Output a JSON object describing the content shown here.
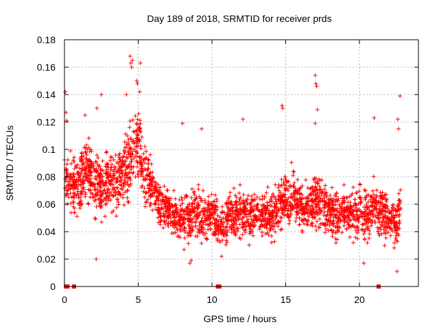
{
  "chart_data": {
    "type": "scatter",
    "title": "Day 189 of 2018, SRMTID for receiver prds",
    "xlabel": "GPS time / hours",
    "ylabel": "SRMTID / TECUs",
    "xlim": [
      0,
      24
    ],
    "ylim": [
      0,
      0.18
    ],
    "xticks": [
      0,
      5,
      10,
      15,
      20
    ],
    "xtick_labels": [
      "0",
      "5",
      "10",
      "15",
      "20"
    ],
    "yticks": [
      0,
      0.02,
      0.04,
      0.06,
      0.08,
      0.1,
      0.12,
      0.14,
      0.16,
      0.18
    ],
    "ytick_labels": [
      "0",
      "0.02",
      "0.04",
      "0.06",
      "0.08",
      "0.1",
      "0.12",
      "0.14",
      "0.16",
      "0.18"
    ],
    "grid": true,
    "marker": "+",
    "marker_color": "#ff0000",
    "series": [
      {
        "name": "SRMTID",
        "trend": {
          "x": [
            0,
            0.5,
            1.0,
            1.5,
            2.0,
            2.5,
            3.0,
            3.5,
            4.0,
            4.5,
            5.0,
            5.5,
            6.0,
            6.5,
            7.0,
            7.5,
            8.0,
            8.5,
            9.0,
            9.5,
            10.0,
            10.5,
            11.0,
            11.5,
            12.0,
            12.5,
            13.0,
            13.5,
            14.0,
            14.5,
            15.0,
            15.5,
            16.0,
            16.5,
            17.0,
            17.5,
            18.0,
            18.5,
            19.0,
            19.5,
            20.0,
            20.5,
            21.0,
            21.5,
            22.0,
            22.5,
            22.8
          ],
          "y": [
            0.08,
            0.07,
            0.075,
            0.085,
            0.08,
            0.07,
            0.075,
            0.08,
            0.085,
            0.095,
            0.105,
            0.085,
            0.07,
            0.06,
            0.055,
            0.05,
            0.05,
            0.05,
            0.055,
            0.05,
            0.055,
            0.045,
            0.05,
            0.05,
            0.055,
            0.05,
            0.055,
            0.05,
            0.05,
            0.06,
            0.065,
            0.065,
            0.06,
            0.055,
            0.065,
            0.06,
            0.055,
            0.05,
            0.055,
            0.05,
            0.055,
            0.05,
            0.06,
            0.055,
            0.05,
            0.045,
            0.06
          ],
          "spread": [
            0.025,
            0.025,
            0.025,
            0.028,
            0.028,
            0.028,
            0.028,
            0.03,
            0.032,
            0.035,
            0.035,
            0.03,
            0.025,
            0.022,
            0.02,
            0.02,
            0.02,
            0.022,
            0.022,
            0.02,
            0.022,
            0.02,
            0.022,
            0.022,
            0.022,
            0.02,
            0.022,
            0.02,
            0.022,
            0.025,
            0.025,
            0.025,
            0.022,
            0.022,
            0.025,
            0.025,
            0.022,
            0.02,
            0.02,
            0.02,
            0.022,
            0.022,
            0.025,
            0.022,
            0.02,
            0.02,
            0.025
          ],
          "points_per_hour": 120,
          "seed": 189
        },
        "outliers": [
          {
            "x": 0.05,
            "y": 0.142
          },
          {
            "x": 0.1,
            "y": 0.127
          },
          {
            "x": 0.15,
            "y": 0.121
          },
          {
            "x": 4.45,
            "y": 0.168
          },
          {
            "x": 4.5,
            "y": 0.163
          },
          {
            "x": 4.6,
            "y": 0.165
          },
          {
            "x": 4.55,
            "y": 0.16
          },
          {
            "x": 4.9,
            "y": 0.15
          },
          {
            "x": 4.95,
            "y": 0.148
          },
          {
            "x": 5.15,
            "y": 0.163
          },
          {
            "x": 5.1,
            "y": 0.142
          },
          {
            "x": 4.2,
            "y": 0.14
          },
          {
            "x": 2.5,
            "y": 0.14
          },
          {
            "x": 2.2,
            "y": 0.13
          },
          {
            "x": 1.4,
            "y": 0.125
          },
          {
            "x": 14.75,
            "y": 0.132
          },
          {
            "x": 14.8,
            "y": 0.13
          },
          {
            "x": 17.0,
            "y": 0.154
          },
          {
            "x": 17.05,
            "y": 0.148
          },
          {
            "x": 17.1,
            "y": 0.146
          },
          {
            "x": 17.15,
            "y": 0.129
          },
          {
            "x": 17.0,
            "y": 0.119
          },
          {
            "x": 12.1,
            "y": 0.122
          },
          {
            "x": 21.0,
            "y": 0.123
          },
          {
            "x": 22.75,
            "y": 0.139
          },
          {
            "x": 22.6,
            "y": 0.122
          },
          {
            "x": 22.65,
            "y": 0.115
          },
          {
            "x": 8.0,
            "y": 0.119
          },
          {
            "x": 9.3,
            "y": 0.115
          },
          {
            "x": 2.15,
            "y": 0.02
          },
          {
            "x": 8.5,
            "y": 0.017
          },
          {
            "x": 8.6,
            "y": 0.019
          },
          {
            "x": 10.65,
            "y": 0.022
          },
          {
            "x": 20.3,
            "y": 0.017
          },
          {
            "x": 22.55,
            "y": 0.011
          },
          {
            "x": 0.1,
            "y": 0.0
          },
          {
            "x": 0.2,
            "y": 0.0
          },
          {
            "x": 0.65,
            "y": 0.0
          },
          {
            "x": 10.4,
            "y": 0.0
          },
          {
            "x": 10.5,
            "y": 0.0
          },
          {
            "x": 21.3,
            "y": 0.0
          }
        ]
      }
    ]
  }
}
